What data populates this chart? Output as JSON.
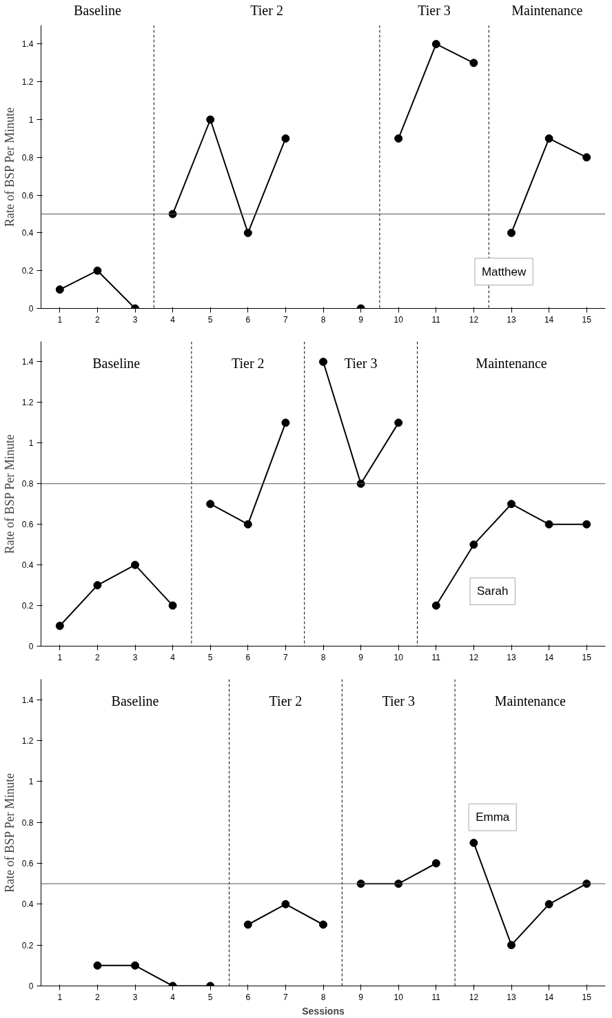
{
  "chart_data": [
    {
      "type": "line",
      "ylabel": "Rate of BSP Per Minute",
      "xlim": [
        0.5,
        15.5
      ],
      "ylim": [
        0,
        1.5
      ],
      "xticks": [
        1,
        2,
        3,
        4,
        5,
        6,
        7,
        8,
        9,
        10,
        11,
        12,
        13,
        14,
        15
      ],
      "yticks": [
        0,
        0.2,
        0.4,
        0.6,
        0.8,
        1,
        1.2,
        1.4
      ],
      "marker": "circle",
      "line_style": "solid",
      "series": [
        {
          "color": "#000000",
          "x": [
            1,
            2,
            3
          ],
          "values": [
            0.1,
            0.2,
            0
          ]
        },
        {
          "color": "#000000",
          "x": [
            4,
            5,
            6,
            7
          ],
          "values": [
            0.5,
            1.0,
            0.4,
            0.9
          ]
        },
        {
          "color": "#000000",
          "x": [
            9
          ],
          "values": [
            0
          ]
        },
        {
          "color": "#000000",
          "x": [
            10,
            11,
            12
          ],
          "values": [
            0.9,
            1.4,
            1.3
          ]
        },
        {
          "color": "#000000",
          "x": [
            13,
            14,
            15
          ],
          "values": [
            0.4,
            0.9,
            0.8
          ]
        }
      ],
      "ref_lines": [
        {
          "axis": "x",
          "value": 3.5,
          "line_style": "dashed"
        },
        {
          "axis": "x",
          "value": 9.5,
          "line_style": "dashed"
        },
        {
          "axis": "x",
          "value": 12.4,
          "line_style": "dashed"
        },
        {
          "axis": "y",
          "value": 0.5,
          "color": "#555555"
        }
      ],
      "annotations": [
        "Baseline",
        "Tier 2",
        "Tier 3",
        "Maintenance",
        "Matthew"
      ]
    },
    {
      "type": "line",
      "ylabel": "Rate of BSP Per Minute",
      "xlim": [
        0.5,
        15.5
      ],
      "ylim": [
        0,
        1.5
      ],
      "xticks": [
        1,
        2,
        3,
        4,
        5,
        6,
        7,
        8,
        9,
        10,
        11,
        12,
        13,
        14,
        15
      ],
      "yticks": [
        0,
        0.2,
        0.4,
        0.6,
        0.8,
        1,
        1.2,
        1.4
      ],
      "marker": "circle",
      "line_style": "solid",
      "series": [
        {
          "color": "#000000",
          "x": [
            1,
            2,
            3,
            4
          ],
          "values": [
            0.1,
            0.3,
            0.4,
            0.2
          ]
        },
        {
          "color": "#000000",
          "x": [
            5,
            6,
            7
          ],
          "values": [
            0.7,
            0.6,
            1.1
          ]
        },
        {
          "color": "#000000",
          "x": [
            8,
            9,
            10
          ],
          "values": [
            1.4,
            0.8,
            1.1
          ]
        },
        {
          "color": "#000000",
          "x": [
            11,
            12,
            13,
            14,
            15
          ],
          "values": [
            0.2,
            0.5,
            0.7,
            0.6,
            0.6
          ]
        }
      ],
      "ref_lines": [
        {
          "axis": "x",
          "value": 4.5,
          "line_style": "dashed"
        },
        {
          "axis": "x",
          "value": 7.5,
          "line_style": "dashed"
        },
        {
          "axis": "x",
          "value": 10.5,
          "line_style": "dashed"
        },
        {
          "axis": "y",
          "value": 0.8,
          "color": "#555555"
        }
      ],
      "annotations": [
        "Baseline",
        "Tier 2",
        "Tier 3",
        "Maintenance",
        "Sarah"
      ]
    },
    {
      "type": "line",
      "ylabel": "Rate of BSP Per Minute",
      "xlabel": "Sessions",
      "xlim": [
        0.5,
        15.5
      ],
      "ylim": [
        0,
        1.5
      ],
      "xticks": [
        1,
        2,
        3,
        4,
        5,
        6,
        7,
        8,
        9,
        10,
        11,
        12,
        13,
        14,
        15
      ],
      "yticks": [
        0,
        0.2,
        0.4,
        0.6,
        0.8,
        1,
        1.2,
        1.4
      ],
      "marker": "circle",
      "line_style": "solid",
      "series": [
        {
          "color": "#000000",
          "x": [
            2,
            3,
            4,
            5
          ],
          "values": [
            0.1,
            0.1,
            0,
            0
          ]
        },
        {
          "color": "#000000",
          "x": [
            6,
            7,
            8
          ],
          "values": [
            0.3,
            0.4,
            0.3
          ]
        },
        {
          "color": "#000000",
          "x": [
            9,
            10,
            11
          ],
          "values": [
            0.5,
            0.5,
            0.6
          ]
        },
        {
          "color": "#000000",
          "x": [
            12,
            13,
            14,
            15
          ],
          "values": [
            0.7,
            0.2,
            0.4,
            0.5
          ]
        }
      ],
      "ref_lines": [
        {
          "axis": "x",
          "value": 5.5,
          "line_style": "dashed"
        },
        {
          "axis": "x",
          "value": 8.5,
          "line_style": "dashed"
        },
        {
          "axis": "x",
          "value": 11.5,
          "line_style": "dashed"
        },
        {
          "axis": "y",
          "value": 0.5,
          "color": "#555555"
        }
      ],
      "annotations": [
        "Baseline",
        "Tier 2",
        "Tier 3",
        "Maintenance",
        "Emma"
      ]
    }
  ]
}
